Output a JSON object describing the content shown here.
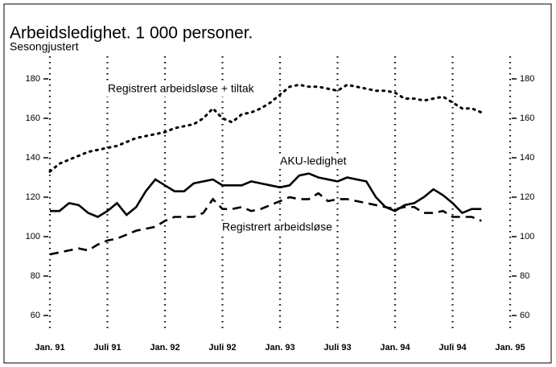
{
  "chart_data": {
    "type": "line",
    "title": "Arbeidsledighet. 1 000 personer.",
    "subtitle": "Sesongjustert",
    "x": [
      "1991-01",
      "1991-02",
      "1991-03",
      "1991-04",
      "1991-05",
      "1991-06",
      "1991-07",
      "1991-08",
      "1991-09",
      "1991-10",
      "1991-11",
      "1991-12",
      "1992-01",
      "1992-02",
      "1992-03",
      "1992-04",
      "1992-05",
      "1992-06",
      "1992-07",
      "1992-08",
      "1992-09",
      "1992-10",
      "1992-11",
      "1992-12",
      "1993-01",
      "1993-02",
      "1993-03",
      "1993-04",
      "1993-05",
      "1993-06",
      "1993-07",
      "1993-08",
      "1993-09",
      "1993-10",
      "1993-11",
      "1993-12",
      "1994-01",
      "1994-02",
      "1994-03",
      "1994-04",
      "1994-05",
      "1994-06",
      "1994-07",
      "1994-08",
      "1994-09",
      "1994-10"
    ],
    "series": [
      {
        "name": "Registrert arbeidsløse + tiltak",
        "color": "#000000",
        "style": "dotted",
        "values": [
          133,
          137,
          139,
          141,
          143,
          144,
          145,
          146,
          148,
          150,
          151,
          152,
          153,
          155,
          156,
          157,
          160,
          165,
          160,
          158,
          162,
          163,
          165,
          168,
          172,
          176,
          177,
          176,
          176,
          175,
          174,
          177,
          176,
          175,
          174,
          174,
          173,
          170,
          170,
          169,
          170,
          171,
          168,
          165,
          165,
          163
        ]
      },
      {
        "name": "AKU-ledighet",
        "color": "#000000",
        "style": "solid",
        "values": [
          113,
          113,
          117,
          116,
          112,
          110,
          113,
          117,
          111,
          115,
          123,
          129,
          126,
          123,
          123,
          127,
          128,
          129,
          126,
          126,
          126,
          128,
          127,
          126,
          125,
          126,
          131,
          132,
          130,
          129,
          128,
          130,
          129,
          128,
          120,
          115,
          113,
          116,
          117,
          120,
          124,
          121,
          117,
          112,
          114,
          114
        ]
      },
      {
        "name": "Registrert arbeidsløse",
        "color": "#000000",
        "style": "dashed",
        "values": [
          91,
          92,
          93,
          94,
          93,
          96,
          98,
          99,
          101,
          103,
          104,
          105,
          108,
          110,
          110,
          110,
          112,
          119,
          114,
          114,
          115,
          113,
          114,
          116,
          118,
          120,
          119,
          119,
          122,
          118,
          119,
          119,
          118,
          117,
          116,
          115,
          114,
          115,
          115,
          112,
          112,
          113,
          110,
          110,
          110,
          108
        ]
      }
    ],
    "xlim": [
      "1991-01",
      "1995-01"
    ],
    "xticks": [
      {
        "value": "1991-01",
        "label": "Jan. 91"
      },
      {
        "value": "1991-07",
        "label": "Juli 91"
      },
      {
        "value": "1992-01",
        "label": "Jan. 92"
      },
      {
        "value": "1992-07",
        "label": "Juli 92"
      },
      {
        "value": "1993-01",
        "label": "Jan. 93"
      },
      {
        "value": "1993-07",
        "label": "Juli 93"
      },
      {
        "value": "1994-01",
        "label": "Jan. 94"
      },
      {
        "value": "1994-07",
        "label": "Juli 94"
      },
      {
        "value": "1995-01",
        "label": "Jan. 95"
      }
    ],
    "ylim": [
      60,
      180
    ],
    "yticks": [
      60,
      80,
      100,
      120,
      140,
      160,
      180
    ],
    "y2lim": [
      60,
      180
    ],
    "y2ticks": [
      60,
      80,
      100,
      120,
      140,
      160,
      180
    ],
    "grid": true
  }
}
